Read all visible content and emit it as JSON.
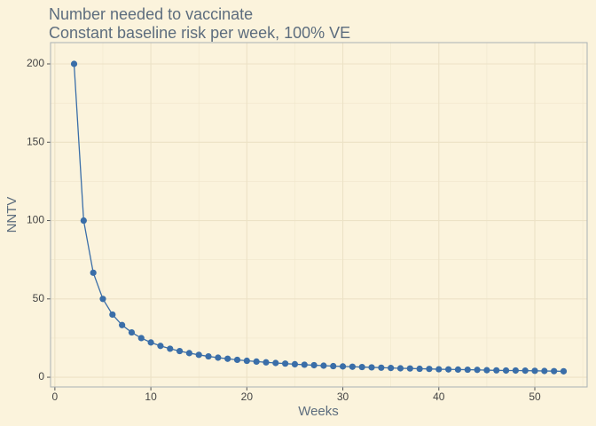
{
  "chart_data": {
    "type": "line",
    "title": "Number needed to vaccinate",
    "subtitle": "Constant baseline risk per week, 100% VE",
    "x_label": "Weeks",
    "y_label": "NNTV",
    "x": [
      2,
      3,
      4,
      5,
      6,
      7,
      8,
      9,
      10,
      11,
      12,
      13,
      14,
      15,
      16,
      17,
      18,
      19,
      20,
      21,
      22,
      23,
      24,
      25,
      26,
      27,
      28,
      29,
      30,
      31,
      32,
      33,
      34,
      35,
      36,
      37,
      38,
      39,
      40,
      41,
      42,
      43,
      44,
      45,
      46,
      47,
      48,
      49,
      50,
      51,
      52,
      53
    ],
    "series": [
      {
        "name": "NNTV",
        "color": "#3a6ea8",
        "values": [
          200,
          100,
          66.7,
          50,
          40,
          33.3,
          28.6,
          25,
          22.2,
          20,
          18.2,
          16.7,
          15.4,
          14.3,
          13.3,
          12.5,
          11.8,
          11.1,
          10.5,
          10,
          9.5,
          9.1,
          8.7,
          8.3,
          8,
          7.7,
          7.4,
          7.1,
          6.9,
          6.7,
          6.5,
          6.3,
          6.1,
          5.9,
          5.7,
          5.6,
          5.4,
          5.3,
          5.1,
          5,
          4.9,
          4.8,
          4.7,
          4.5,
          4.4,
          4.3,
          4.3,
          4.2,
          4.1,
          4,
          3.9,
          3.8
        ]
      }
    ],
    "xlim": [
      -0.45,
      55.45
    ],
    "ylim": [
      -6.2,
      213.6
    ],
    "xticks": [
      0,
      10,
      20,
      30,
      40,
      50
    ],
    "yticks": [
      0,
      50,
      100,
      150,
      200
    ],
    "grid": true
  }
}
